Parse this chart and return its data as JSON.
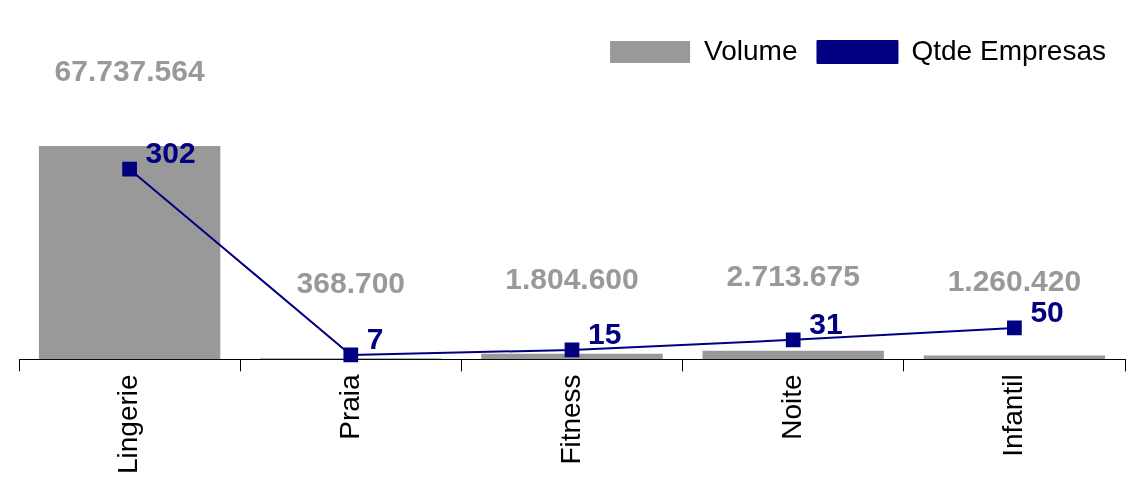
{
  "chart_data": {
    "type": "bar",
    "categories": [
      "Lingerie",
      "Praia",
      "Fitness",
      "Noite",
      "Infantil"
    ],
    "series": [
      {
        "name": "Volume",
        "color": "#999999",
        "values": [
          67737564,
          368700,
          1804600,
          2713675,
          1260420
        ],
        "value_labels": [
          "67.737.564",
          "368.700",
          "1.804.600",
          "2.713.675",
          "1.260.420"
        ]
      },
      {
        "name": "Qtde Empresas",
        "type": "line",
        "axis": "y2",
        "color": "#000080",
        "values": [
          302,
          7,
          15,
          31,
          50
        ],
        "value_labels": [
          "302",
          "7",
          "15",
          "31",
          "50"
        ]
      }
    ],
    "tick_labels": "x",
    "legend": "top right",
    "marker": "square",
    "line_style": "solid"
  }
}
